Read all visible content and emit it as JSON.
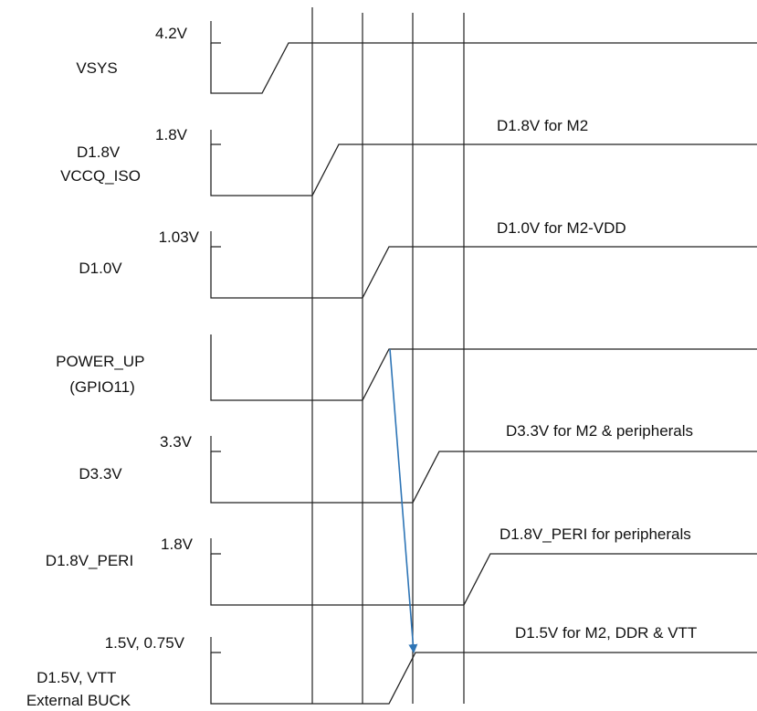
{
  "signals": [
    {
      "id": "vsys",
      "name": [
        "VSYS"
      ],
      "level": "4.2V",
      "note": ""
    },
    {
      "id": "d18",
      "name": [
        "D1.8V",
        "VCCQ_ISO"
      ],
      "level": "1.8V",
      "note": "D1.8V for M2"
    },
    {
      "id": "d10",
      "name": [
        "D1.0V"
      ],
      "level": "1.03V",
      "note": "D1.0V for M2-VDD"
    },
    {
      "id": "powerup",
      "name": [
        "POWER_UP",
        "(GPIO11)"
      ],
      "level": "",
      "note": ""
    },
    {
      "id": "d33",
      "name": [
        "D3.3V"
      ],
      "level": "3.3V",
      "note": "D3.3V for M2 & peripherals"
    },
    {
      "id": "d18peri",
      "name": [
        "D1.8V_PERI"
      ],
      "level": "1.8V",
      "note": "D1.8V_PERI for peripherals"
    },
    {
      "id": "d15",
      "name": [
        "D1.5V, VTT",
        "External BUCK"
      ],
      "level": "1.5V, 0.75V",
      "note": "D1.5V for M2, DDR & VTT"
    }
  ],
  "colors": {
    "arrow": "#2E75B6",
    "line": "#222222"
  }
}
